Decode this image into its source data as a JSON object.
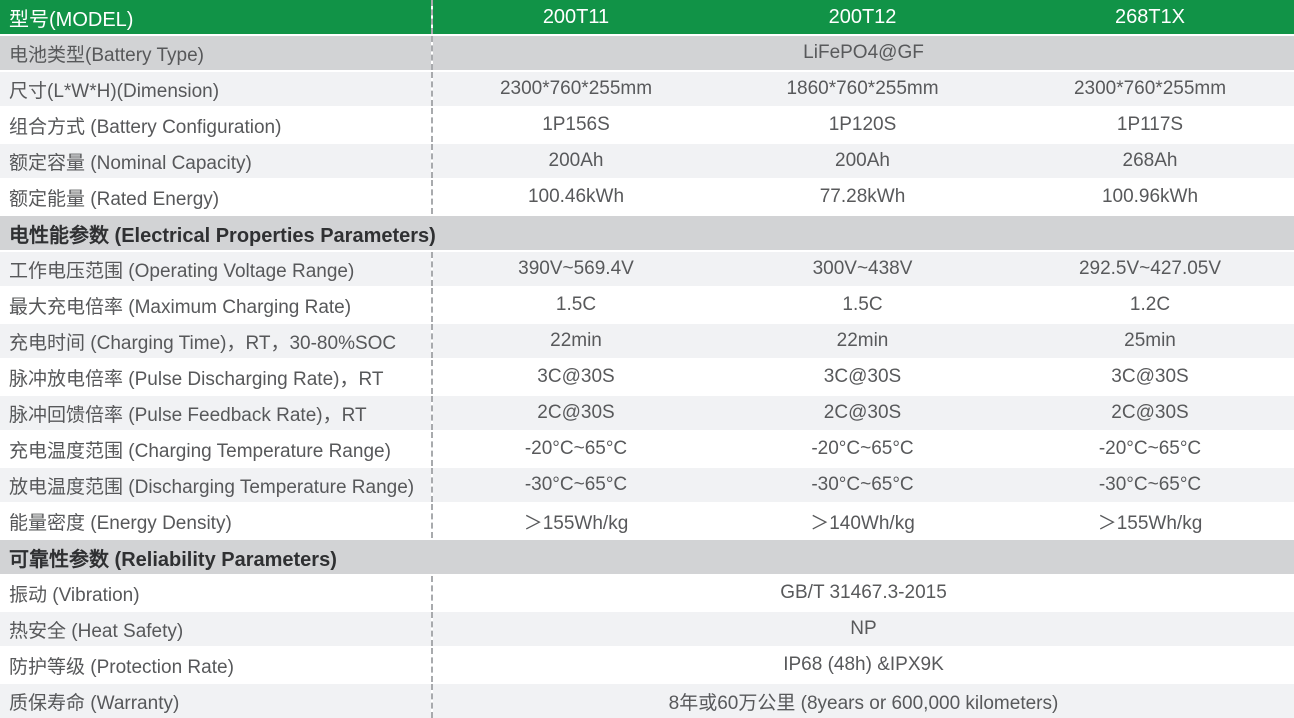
{
  "colors": {
    "header_green": "#119347",
    "section_gray": "#d2d3d5",
    "row_light": "#f1f2f4",
    "row_white": "#ffffff",
    "divider_dash": "#a8aaad",
    "label_text": "#57585a",
    "value_text": "#58595b",
    "section_text": "#2f3032",
    "header_text": "#ffffff"
  },
  "header": {
    "label": "型号(MODEL)",
    "models": [
      "200T11",
      "200T12",
      "268T1X"
    ]
  },
  "rows": [
    {
      "kind": "span",
      "bg": "gray",
      "label": "电池类型(Battery Type)",
      "value": "LiFePO4@GF"
    },
    {
      "kind": "cells",
      "bg": "light",
      "label": "尺寸(L*W*H)(Dimension)",
      "values": [
        "2300*760*255mm",
        "1860*760*255mm",
        "2300*760*255mm"
      ]
    },
    {
      "kind": "cells",
      "bg": "white",
      "label": "组合方式 (Battery Configuration)",
      "values": [
        "1P156S",
        "1P120S",
        "1P117S"
      ]
    },
    {
      "kind": "cells",
      "bg": "light",
      "label": "额定容量 (Nominal Capacity)",
      "values": [
        "200Ah",
        "200Ah",
        "268Ah"
      ]
    },
    {
      "kind": "cells",
      "bg": "white",
      "label": "额定能量 (Rated Energy)",
      "values": [
        "100.46kWh",
        "77.28kWh",
        "100.96kWh"
      ]
    },
    {
      "kind": "section",
      "label": "电性能参数 (Electrical Properties Parameters)"
    },
    {
      "kind": "cells",
      "bg": "light",
      "label": "工作电压范围 (Operating Voltage Range)",
      "values": [
        "390V~569.4V",
        "300V~438V",
        "292.5V~427.05V"
      ]
    },
    {
      "kind": "cells",
      "bg": "white",
      "label": "最大充电倍率 (Maximum Charging Rate)",
      "values": [
        "1.5C",
        "1.5C",
        "1.2C"
      ]
    },
    {
      "kind": "cells",
      "bg": "light",
      "label": "充电时间 (Charging Time)，RT，30-80%SOC",
      "values": [
        "22min",
        "22min",
        "25min"
      ]
    },
    {
      "kind": "cells",
      "bg": "white",
      "label": "脉冲放电倍率 (Pulse Discharging Rate)，RT",
      "values": [
        "3C@30S",
        "3C@30S",
        "3C@30S"
      ]
    },
    {
      "kind": "cells",
      "bg": "light",
      "label": "脉冲回馈倍率 (Pulse Feedback Rate)，RT",
      "values": [
        "2C@30S",
        "2C@30S",
        "2C@30S"
      ]
    },
    {
      "kind": "cells",
      "bg": "white",
      "label": "充电温度范围 (Charging Temperature Range)",
      "values": [
        "-20°C~65°C",
        "-20°C~65°C",
        "-20°C~65°C"
      ]
    },
    {
      "kind": "cells",
      "bg": "light",
      "label": "放电温度范围 (Discharging Temperature Range)",
      "values": [
        "-30°C~65°C",
        "-30°C~65°C",
        "-30°C~65°C"
      ]
    },
    {
      "kind": "cells",
      "bg": "white",
      "label": "能量密度 (Energy Density)",
      "values": [
        "＞155Wh/kg",
        "＞140Wh/kg",
        "＞155Wh/kg"
      ]
    },
    {
      "kind": "section",
      "label": "可靠性参数 (Reliability Parameters)"
    },
    {
      "kind": "span",
      "bg": "white",
      "label": "振动 (Vibration)",
      "value": "GB/T 31467.3-2015"
    },
    {
      "kind": "span",
      "bg": "light",
      "label": "热安全 (Heat Safety)",
      "value": "NP"
    },
    {
      "kind": "span",
      "bg": "white",
      "label": "防护等级 (Protection Rate)",
      "value": "IP68 (48h) &IPX9K"
    },
    {
      "kind": "span",
      "bg": "light",
      "label": "质保寿命 (Warranty)",
      "value": "8年或60万公里 (8years or 600,000 kilometers)"
    }
  ]
}
